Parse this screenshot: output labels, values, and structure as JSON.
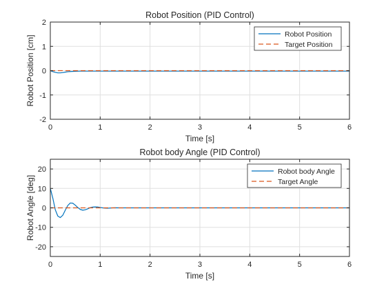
{
  "figure": {
    "background": "#ffffff"
  },
  "chart_data": [
    {
      "type": "line",
      "title": "Robot Position (PID Control)",
      "xlabel": "Time [s]",
      "ylabel": "Robot Position [cm]",
      "xlim": [
        0,
        6
      ],
      "ylim": [
        -2,
        2
      ],
      "xticks": [
        0,
        1,
        2,
        3,
        4,
        5,
        6
      ],
      "yticks": [
        -2,
        -1,
        0,
        1,
        2
      ],
      "grid": true,
      "legend_position": "top-right",
      "series": [
        {
          "name": "Robot Position",
          "color": "#0072BD",
          "style": "solid",
          "x": [
            0,
            0.05,
            0.1,
            0.15,
            0.2,
            0.25,
            0.3,
            0.35,
            0.4,
            0.5,
            0.6,
            0.8,
            1.0,
            1.5,
            2,
            3,
            4,
            5,
            6
          ],
          "y": [
            0,
            -0.04,
            -0.07,
            -0.09,
            -0.09,
            -0.08,
            -0.06,
            -0.045,
            -0.035,
            -0.025,
            -0.02,
            -0.02,
            -0.02,
            -0.02,
            -0.02,
            -0.02,
            -0.02,
            -0.02,
            -0.02
          ]
        },
        {
          "name": "Target Position",
          "color": "#D95319",
          "style": "dashed",
          "x": [
            0,
            6
          ],
          "y": [
            0,
            0
          ]
        }
      ]
    },
    {
      "type": "line",
      "title": "Robot body Angle (PID Control)",
      "xlabel": "Time [s]",
      "ylabel": "Robot Angle [deg]",
      "xlim": [
        0,
        6
      ],
      "ylim": [
        -25,
        25
      ],
      "xticks": [
        0,
        1,
        2,
        3,
        4,
        5,
        6
      ],
      "yticks": [
        -20,
        -10,
        0,
        10,
        20
      ],
      "grid": true,
      "legend_position": "top-right",
      "series": [
        {
          "name": "Robot body Angle",
          "color": "#0072BD",
          "style": "solid",
          "x": [
            0,
            0.05,
            0.1,
            0.15,
            0.2,
            0.25,
            0.3,
            0.35,
            0.4,
            0.45,
            0.5,
            0.55,
            0.6,
            0.65,
            0.7,
            0.75,
            0.8,
            0.85,
            0.9,
            0.95,
            1.0,
            1.05,
            1.1,
            1.15,
            1.2,
            1.25,
            1.3,
            1.4,
            1.5,
            2,
            3,
            4,
            5,
            6
          ],
          "y": [
            10,
            5,
            -1,
            -4.2,
            -5,
            -3.8,
            -1.2,
            1.2,
            2.5,
            2.4,
            1.4,
            0.2,
            -0.8,
            -1.2,
            -1.0,
            -0.5,
            0.1,
            0.4,
            0.5,
            0.45,
            0.2,
            0.0,
            -0.15,
            -0.2,
            -0.1,
            0.0,
            0.05,
            0.0,
            0.0,
            0.0,
            0.0,
            0.0,
            0.0,
            0.0
          ]
        },
        {
          "name": "Target Angle",
          "color": "#D95319",
          "style": "dashed",
          "x": [
            0,
            6
          ],
          "y": [
            0,
            0
          ]
        }
      ]
    }
  ]
}
